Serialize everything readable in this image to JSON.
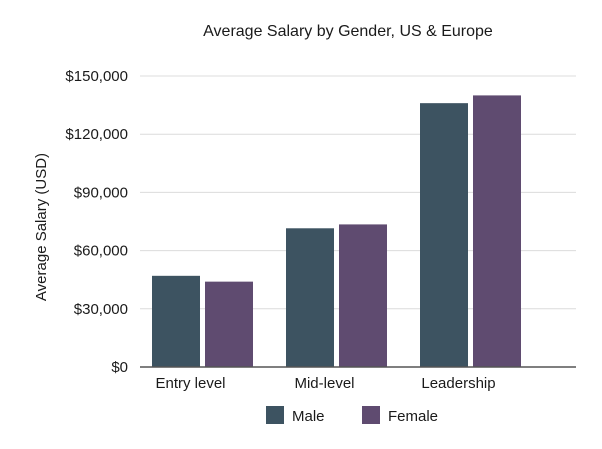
{
  "chart_data": {
    "type": "bar",
    "title": "Average Salary by Gender, US & Europe",
    "xlabel": "",
    "ylabel": "Average Salary (USD)",
    "categories": [
      "Entry level",
      "Mid-level",
      "Leadership"
    ],
    "series": [
      {
        "name": "Male",
        "color": "#3d5361",
        "values": [
          47000,
          71500,
          136000
        ]
      },
      {
        "name": "Female",
        "color": "#5f4b70",
        "values": [
          44000,
          73500,
          140000
        ]
      }
    ],
    "ylim": [
      0,
      150000
    ],
    "yticks": [
      {
        "value": 0,
        "label": "$0"
      },
      {
        "value": 30000,
        "label": "$30,000"
      },
      {
        "value": 60000,
        "label": "$60,000"
      },
      {
        "value": 90000,
        "label": "$90,000"
      },
      {
        "value": 120000,
        "label": "$120,000"
      },
      {
        "value": 150000,
        "label": "$150,000"
      }
    ],
    "grid": true,
    "legend_position": "bottom"
  }
}
